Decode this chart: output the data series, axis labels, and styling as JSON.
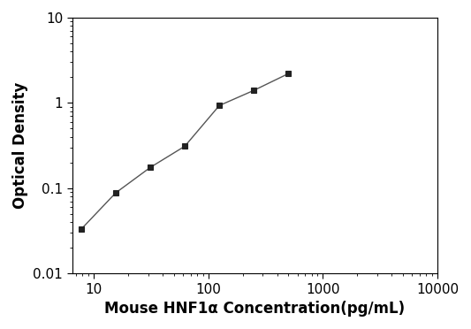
{
  "x": [
    7.8,
    15.6,
    31.25,
    62.5,
    125,
    250,
    500
  ],
  "y": [
    0.033,
    0.088,
    0.175,
    0.31,
    0.93,
    1.4,
    2.2
  ],
  "xlabel": "Mouse HNF1α Concentration(pg/mL)",
  "ylabel": "Optical Density",
  "xlim": [
    6.5,
    10000
  ],
  "ylim": [
    0.01,
    10
  ],
  "xticks": [
    10,
    100,
    1000,
    10000
  ],
  "yticks": [
    0.01,
    0.1,
    1,
    10
  ],
  "ytick_labels": [
    "0.01",
    "0.1",
    "1",
    "10"
  ],
  "xtick_labels": [
    "10",
    "100",
    "1000",
    "10000"
  ],
  "line_color": "#555555",
  "marker": "s",
  "marker_color": "#222222",
  "marker_size": 5,
  "line_width": 1.0,
  "bg_color": "#ffffff",
  "label_fontsize": 12,
  "tick_fontsize": 11
}
